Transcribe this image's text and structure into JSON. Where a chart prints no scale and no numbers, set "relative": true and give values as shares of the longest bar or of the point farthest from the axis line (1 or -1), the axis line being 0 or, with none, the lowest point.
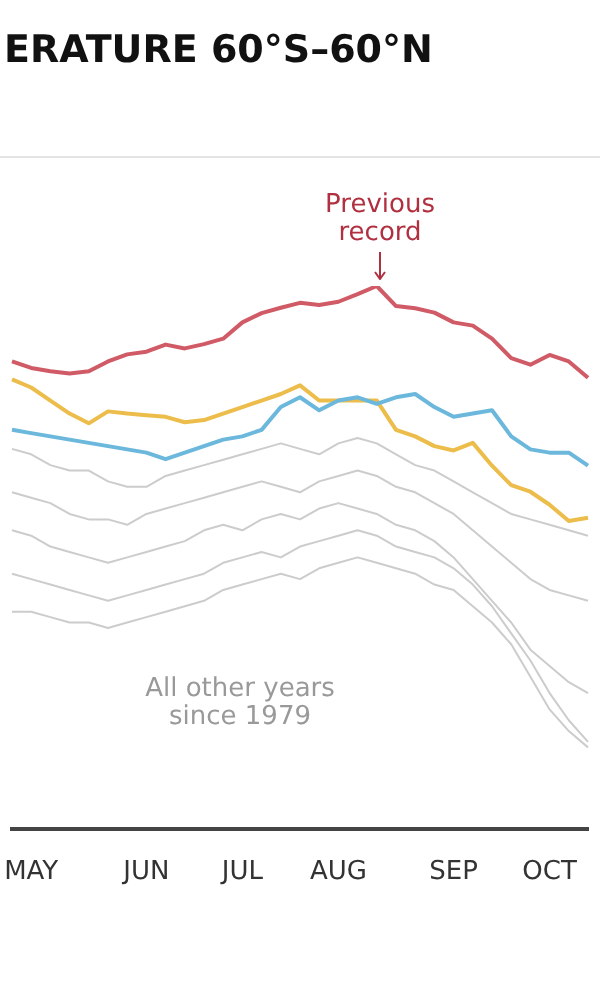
{
  "chart_data": {
    "type": "line",
    "title": "ERATURE 60°S–60°N",
    "relative": true,
    "legend": false,
    "marker": "none",
    "line_style": "solid",
    "categories": [
      null,
      "MAY",
      null,
      null,
      null,
      null,
      null,
      "JUN",
      null,
      null,
      null,
      null,
      "JUL",
      null,
      null,
      null,
      null,
      "AUG",
      null,
      null,
      null,
      null,
      null,
      "SEP",
      null,
      null,
      null,
      null,
      "OCT",
      null,
      null
    ],
    "annotations": [
      "Previous record",
      "All other years since 1979"
    ],
    "series": [
      {
        "color": "#cccccc",
        "values": [
          0.7,
          0.69,
          0.67,
          0.66,
          0.66,
          0.64,
          0.63,
          0.63,
          0.65,
          0.66,
          0.67,
          0.68,
          0.69,
          0.7,
          0.71,
          0.7,
          0.69,
          0.71,
          0.72,
          0.71,
          0.69,
          0.67,
          0.66,
          0.64,
          0.62,
          0.6,
          0.58,
          0.57,
          0.56,
          0.55,
          0.54
        ]
      },
      {
        "color": "#cccccc",
        "values": [
          0.62,
          0.61,
          0.6,
          0.58,
          0.57,
          0.57,
          0.56,
          0.58,
          0.59,
          0.6,
          0.61,
          0.62,
          0.63,
          0.64,
          0.63,
          0.62,
          0.64,
          0.65,
          0.66,
          0.65,
          0.63,
          0.62,
          0.6,
          0.58,
          0.55,
          0.52,
          0.49,
          0.46,
          0.44,
          0.43,
          0.42
        ]
      },
      {
        "color": "#cccccc",
        "values": [
          0.55,
          0.54,
          0.52,
          0.51,
          0.5,
          0.49,
          0.5,
          0.51,
          0.52,
          0.53,
          0.55,
          0.56,
          0.55,
          0.57,
          0.58,
          0.57,
          0.59,
          0.6,
          0.59,
          0.58,
          0.56,
          0.55,
          0.53,
          0.5,
          0.46,
          0.42,
          0.38,
          0.33,
          0.3,
          0.27,
          0.25
        ]
      },
      {
        "color": "#cccccc",
        "values": [
          0.47,
          0.46,
          0.45,
          0.44,
          0.43,
          0.42,
          0.43,
          0.44,
          0.45,
          0.46,
          0.47,
          0.49,
          0.5,
          0.51,
          0.5,
          0.52,
          0.53,
          0.54,
          0.55,
          0.54,
          0.52,
          0.51,
          0.5,
          0.48,
          0.45,
          0.41,
          0.36,
          0.31,
          0.25,
          0.2,
          0.16
        ]
      },
      {
        "color": "#cccccc",
        "values": [
          0.4,
          0.4,
          0.39,
          0.38,
          0.38,
          0.37,
          0.38,
          0.39,
          0.4,
          0.41,
          0.42,
          0.44,
          0.45,
          0.46,
          0.47,
          0.46,
          0.48,
          0.49,
          0.5,
          0.49,
          0.48,
          0.47,
          0.45,
          0.44,
          0.41,
          0.38,
          0.34,
          0.28,
          0.22,
          0.18,
          0.15
        ]
      },
      {
        "color": "#6cb8dc",
        "values": [
          0.735,
          0.729,
          0.723,
          0.717,
          0.711,
          0.705,
          0.699,
          0.693,
          0.681,
          0.693,
          0.705,
          0.717,
          0.723,
          0.735,
          0.777,
          0.795,
          0.771,
          0.789,
          0.795,
          0.783,
          0.795,
          0.801,
          0.777,
          0.759,
          0.765,
          0.771,
          0.723,
          0.699,
          0.693,
          0.693,
          0.669
        ]
      },
      {
        "color": "#ecbd4a",
        "values": [
          0.828,
          0.813,
          0.789,
          0.765,
          0.747,
          0.769,
          0.765,
          0.762,
          0.759,
          0.749,
          0.753,
          0.765,
          0.777,
          0.789,
          0.801,
          0.817,
          0.789,
          0.789,
          0.789,
          0.789,
          0.735,
          0.723,
          0.705,
          0.697,
          0.711,
          0.669,
          0.633,
          0.621,
          0.597,
          0.567,
          0.573
        ]
      },
      {
        "color": "#d05a66",
        "values": [
          0.861,
          0.849,
          0.843,
          0.839,
          0.843,
          0.861,
          0.874,
          0.879,
          0.892,
          0.885,
          0.893,
          0.903,
          0.933,
          0.95,
          0.96,
          0.969,
          0.965,
          0.971,
          0.985,
          1,
          0.963,
          0.959,
          0.951,
          0.933,
          0.927,
          0.903,
          0.867,
          0.855,
          0.873,
          0.861,
          0.831
        ]
      }
    ]
  }
}
